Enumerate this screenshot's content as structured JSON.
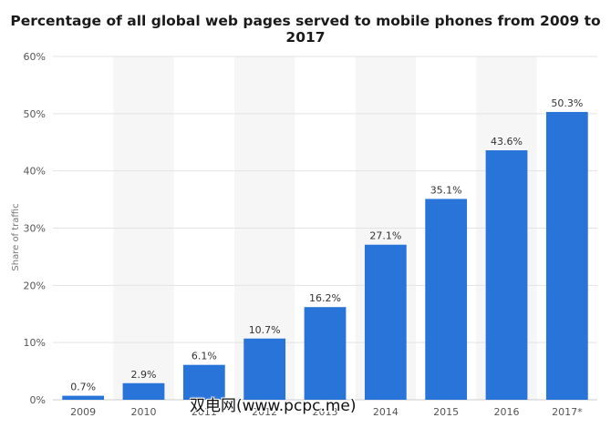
{
  "title": "Percentage of all global web pages served to mobile phones from 2009 to 2017",
  "chart_data": {
    "type": "bar",
    "categories": [
      "2009",
      "2010",
      "2011",
      "2012",
      "2013",
      "2014",
      "2015",
      "2016",
      "2017*"
    ],
    "values": [
      0.7,
      2.9,
      6.1,
      10.7,
      16.2,
      27.1,
      35.1,
      43.6,
      50.3
    ],
    "value_labels": [
      "0.7%",
      "2.9%",
      "6.1%",
      "10.7%",
      "16.2%",
      "27.1%",
      "35.1%",
      "43.6%",
      "50.3%"
    ],
    "ylabel": "Share of traffic",
    "ylim": [
      0,
      60
    ],
    "yticks": [
      0,
      10,
      20,
      30,
      40,
      50,
      60
    ],
    "ytick_labels": [
      "0%",
      "10%",
      "20%",
      "30%",
      "40%",
      "50%",
      "60%"
    ],
    "grid": true,
    "bar_color": "#2874d9"
  },
  "watermark": "双电网(www.pcpc.me)"
}
